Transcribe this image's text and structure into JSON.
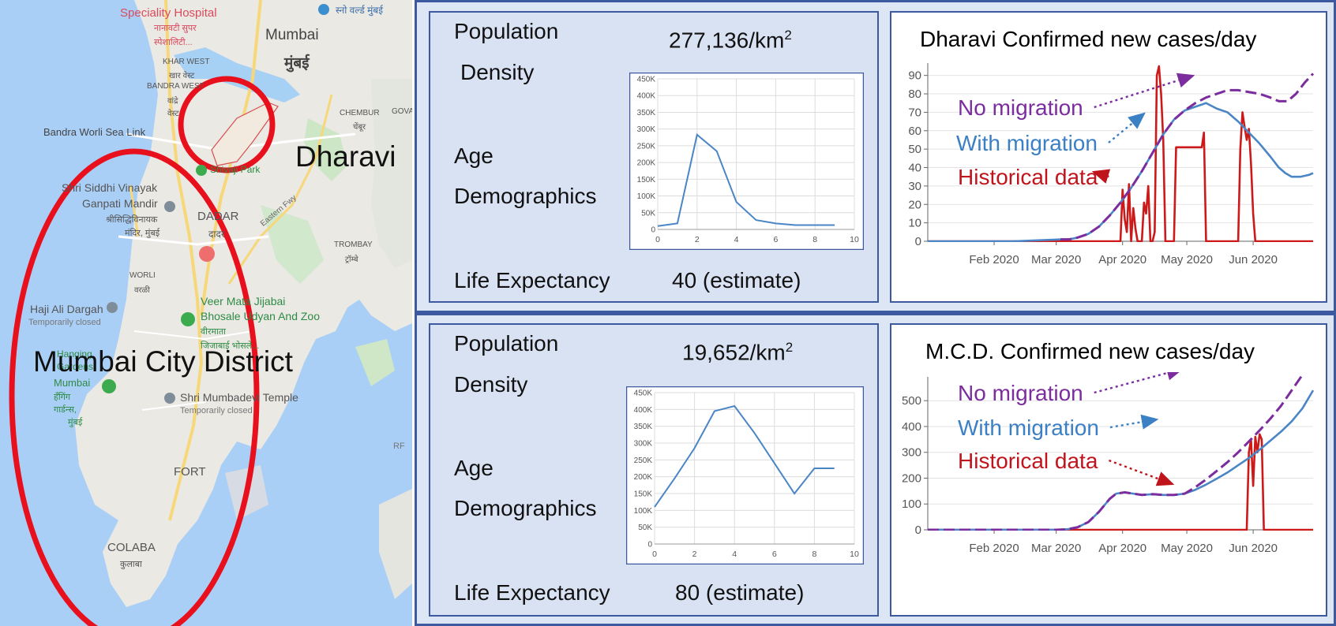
{
  "map": {
    "labels": {
      "speciality_hospital": "Speciality Hospital",
      "speciality_hospital_local1": "नानावटी सुपर",
      "speciality_hospital_local2": "स्पेशालिटी...",
      "top_local": "स्नो वर्ल्ड मुंबई",
      "mumbai": "Mumbai",
      "mumbai_local": "मुंबई",
      "khar_west": "KHAR WEST",
      "khar_west_local": "खार वेस्ट",
      "bandra_west": "BANDRA WEST",
      "bandra_west_local": "वांद्रे",
      "west_local": "वेस्ट",
      "bandra_worli": "Bandra Worli Sea Link",
      "chembur": "CHEMBUR",
      "chembur_local": "चेंबूर",
      "govan": "GOVAN",
      "dharavi": "Dharavi",
      "shivaji_park": "Shivaji Park",
      "siddhivinayak1": "Shri Siddhi Vinayak",
      "siddhivinayak2": "Ganpati Mandir",
      "siddhivinayak_local1": "श्रीसिद्धिविनायक",
      "siddhivinayak_local2": "मंदिर, मुंबई",
      "dadar": "DADAR",
      "dadar_local": "दादर",
      "eastern_fwy": "Eastern Fwy",
      "trombay": "TROMBAY",
      "trombay_local": "ट्रॉम्बे",
      "worli": "WORLI",
      "worli_local": "वरळी",
      "haji_ali": "Haji Ali Dargah",
      "temp_closed1": "Temporarily closed",
      "veer1": "Veer Mata Jijabai",
      "veer2": "Bhosale Udyan And Zoo",
      "veer_local1": "वीरमाता",
      "veer_local2": "जिजाबाई भोसले...",
      "mumbai_city_district": "Mumbai City District",
      "hanging1": "Hanging",
      "hanging2": "Gardens",
      "hanging3": "Mumbai",
      "hanging_local1": "हँगिंग",
      "hanging_local2": "गार्डन्स,",
      "hanging_local3": "मुंबई",
      "mumbadevi": "Shri Mumbadevi Temple",
      "temp_closed2": "Temporarily closed",
      "fort": "FORT",
      "colaba": "COLABA",
      "colaba_local": "कुलाबा",
      "rf": "RF"
    },
    "circle_color": "#e8101d"
  },
  "panels": [
    {
      "population_label_1": "Population",
      "population_label_2": "Density",
      "density_value": "277,136/km",
      "density_sup": "2",
      "age_label_1": "Age",
      "age_label_2": "Demographics",
      "life_label": "Life Expectancy",
      "life_value": "40 (estimate)",
      "age_chart": {
        "type": "line",
        "x": [
          0,
          1,
          2,
          3,
          4,
          5,
          6,
          7,
          8,
          9
        ],
        "values": [
          10000,
          18000,
          283000,
          234000,
          82000,
          28000,
          18000,
          13000,
          13000,
          13000
        ],
        "yticks": [
          "0",
          "50K",
          "100K",
          "150K",
          "200K",
          "250K",
          "300K",
          "350K",
          "400K",
          "450K"
        ],
        "xticks": [
          "0",
          "2",
          "4",
          "6",
          "8",
          "10"
        ],
        "xlim": [
          0,
          10
        ],
        "ylim": [
          0,
          450000
        ],
        "color": "#4a86c5"
      },
      "cases_chart": {
        "type": "line",
        "title": "Dharavi Confirmed new cases/day",
        "xticks": [
          "Feb 2020",
          "Mar 2020",
          "Apr 2020",
          "May 2020",
          "Jun 2020"
        ],
        "xtick_days": [
          31,
          60,
          91,
          121,
          152
        ],
        "xlim": [
          0,
          180
        ],
        "yticks": [
          "0",
          "10",
          "20",
          "30",
          "40",
          "50",
          "60",
          "70",
          "80",
          "90"
        ],
        "ylim": [
          0,
          95
        ],
        "series": [
          {
            "name": "No migration",
            "color": "#7b2d9e",
            "dash": "dashed",
            "points": [
              [
                62,
                1
              ],
              [
                66,
                1
              ],
              [
                70,
                2
              ],
              [
                75,
                4
              ],
              [
                80,
                8
              ],
              [
                85,
                14
              ],
              [
                90,
                21
              ],
              [
                95,
                29
              ],
              [
                100,
                38
              ],
              [
                105,
                48
              ],
              [
                110,
                58
              ],
              [
                115,
                66
              ],
              [
                120,
                71
              ],
              [
                125,
                75
              ],
              [
                130,
                78
              ],
              [
                135,
                80
              ],
              [
                140,
                82
              ],
              [
                145,
                82
              ],
              [
                150,
                81
              ],
              [
                155,
                80
              ],
              [
                160,
                78
              ],
              [
                164,
                76
              ],
              [
                168,
                76
              ],
              [
                172,
                80
              ],
              [
                176,
                86
              ],
              [
                180,
                91
              ]
            ]
          },
          {
            "name": "With migration",
            "color": "#4a86c5",
            "dash": "solid",
            "points": [
              [
                0,
                0
              ],
              [
                20,
                0
              ],
              [
                40,
                0
              ],
              [
                62,
                1
              ],
              [
                66,
                1
              ],
              [
                70,
                2
              ],
              [
                75,
                4
              ],
              [
                80,
                8
              ],
              [
                85,
                14
              ],
              [
                90,
                21
              ],
              [
                95,
                29
              ],
              [
                100,
                38
              ],
              [
                105,
                48
              ],
              [
                110,
                58
              ],
              [
                115,
                66
              ],
              [
                120,
                71
              ],
              [
                125,
                73
              ],
              [
                130,
                75
              ],
              [
                135,
                72
              ],
              [
                140,
                70
              ],
              [
                145,
                65
              ],
              [
                150,
                59
              ],
              [
                155,
                53
              ],
              [
                160,
                46
              ],
              [
                164,
                40
              ],
              [
                167,
                37
              ],
              [
                170,
                35
              ],
              [
                174,
                35
              ],
              [
                178,
                36
              ],
              [
                180,
                37
              ]
            ]
          },
          {
            "name": "Historical data",
            "color": "#cc1a1a",
            "dash": "solid",
            "points": [
              [
                0,
                0
              ],
              [
                87,
                0
              ],
              [
                90,
                0
              ],
              [
                91,
                28
              ],
              [
                92,
                12
              ],
              [
                93,
                5
              ],
              [
                94,
                31
              ],
              [
                95,
                0
              ],
              [
                96,
                18
              ],
              [
                97,
                7
              ],
              [
                98,
                0
              ],
              [
                99,
                0
              ],
              [
                100,
                0
              ],
              [
                101,
                21
              ],
              [
                102,
                15
              ],
              [
                103,
                30
              ],
              [
                104,
                0
              ],
              [
                105,
                0
              ],
              [
                106,
                5
              ],
              [
                107,
                90
              ],
              [
                108,
                95
              ],
              [
                109,
                80
              ],
              [
                110,
                55
              ],
              [
                111,
                0
              ],
              [
                115,
                0
              ],
              [
                116,
                51
              ],
              [
                128,
                51
              ],
              [
                129,
                59
              ],
              [
                130,
                0
              ],
              [
                145,
                0
              ],
              [
                146,
                50
              ],
              [
                147,
                70
              ],
              [
                148,
                62
              ],
              [
                149,
                55
              ],
              [
                150,
                61
              ],
              [
                151,
                42
              ],
              [
                152,
                15
              ],
              [
                153,
                0
              ],
              [
                180,
                0
              ]
            ]
          }
        ],
        "annotations": {
          "no_migration": "No migration",
          "with_migration": "With migration",
          "historical": "Historical data"
        }
      }
    },
    {
      "population_label_1": "Population",
      "population_label_2": "Density",
      "density_value": "19,652/km",
      "density_sup": "2",
      "age_label_1": "Age",
      "age_label_2": "Demographics",
      "life_label": "Life Expectancy",
      "life_value": "80 (estimate)",
      "age_chart": {
        "type": "line",
        "x": [
          0,
          1,
          2,
          3,
          4,
          5,
          6,
          7,
          8,
          9
        ],
        "values": [
          110000,
          195000,
          285000,
          395000,
          410000,
          330000,
          240000,
          150000,
          225000,
          225000
        ],
        "yticks": [
          "0",
          "50K",
          "100K",
          "150K",
          "200K",
          "250K",
          "300K",
          "350K",
          "400K",
          "450K"
        ],
        "xticks": [
          "0",
          "2",
          "4",
          "6",
          "8",
          "10"
        ],
        "xlim": [
          0,
          10
        ],
        "ylim": [
          0,
          450000
        ],
        "color": "#4a86c5"
      },
      "cases_chart": {
        "type": "line",
        "title": "M.C.D.  Confirmed new cases/day",
        "xticks": [
          "Feb 2020",
          "Mar 2020",
          "Apr 2020",
          "May 2020",
          "Jun 2020"
        ],
        "xtick_days": [
          31,
          60,
          91,
          121,
          152
        ],
        "xlim": [
          0,
          180
        ],
        "yticks": [
          "0",
          "100",
          "200",
          "300",
          "400",
          "500"
        ],
        "ylim": [
          0,
          580
        ],
        "series": [
          {
            "name": "No migration",
            "color": "#7b2d9e",
            "dash": "dashed",
            "points": [
              [
                0,
                0
              ],
              [
                20,
                0
              ],
              [
                40,
                0
              ],
              [
                52,
                0
              ],
              [
                60,
                0
              ],
              [
                65,
                2
              ],
              [
                70,
                10
              ],
              [
                75,
                30
              ],
              [
                80,
                70
              ],
              [
                85,
                120
              ],
              [
                88,
                140
              ],
              [
                92,
                145
              ],
              [
                96,
                140
              ],
              [
                100,
                135
              ],
              [
                105,
                138
              ],
              [
                110,
                135
              ],
              [
                115,
                135
              ],
              [
                120,
                140
              ],
              [
                125,
                165
              ],
              [
                130,
                195
              ],
              [
                135,
                228
              ],
              [
                140,
                262
              ],
              [
                145,
                300
              ],
              [
                150,
                342
              ],
              [
                155,
                385
              ],
              [
                160,
                430
              ],
              [
                165,
                480
              ],
              [
                170,
                540
              ],
              [
                175,
                600
              ]
            ]
          },
          {
            "name": "With migration",
            "color": "#4a86c5",
            "dash": "solid",
            "points": [
              [
                0,
                0
              ],
              [
                20,
                0
              ],
              [
                40,
                0
              ],
              [
                52,
                0
              ],
              [
                60,
                0
              ],
              [
                65,
                2
              ],
              [
                70,
                10
              ],
              [
                75,
                30
              ],
              [
                80,
                70
              ],
              [
                85,
                120
              ],
              [
                88,
                140
              ],
              [
                92,
                145
              ],
              [
                96,
                140
              ],
              [
                100,
                135
              ],
              [
                105,
                138
              ],
              [
                110,
                135
              ],
              [
                115,
                135
              ],
              [
                120,
                140
              ],
              [
                125,
                155
              ],
              [
                130,
                175
              ],
              [
                135,
                198
              ],
              [
                140,
                222
              ],
              [
                145,
                250
              ],
              [
                150,
                278
              ],
              [
                155,
                310
              ],
              [
                160,
                345
              ],
              [
                165,
                380
              ],
              [
                170,
                420
              ],
              [
                175,
                470
              ],
              [
                180,
                540
              ]
            ]
          },
          {
            "name": "Historical data",
            "color": "#cc1a1a",
            "dash": "solid",
            "points": [
              [
                0,
                0
              ],
              [
                148,
                0
              ],
              [
                149,
                0
              ],
              [
                150,
                300
              ],
              [
                151,
                350
              ],
              [
                152,
                170
              ],
              [
                153,
                360
              ],
              [
                154,
                300
              ],
              [
                155,
                370
              ],
              [
                156,
                350
              ],
              [
                157,
                0
              ],
              [
                180,
                0
              ]
            ]
          }
        ],
        "annotations": {
          "no_migration": "No migration",
          "with_migration": "With migration",
          "historical": "Historical data"
        }
      }
    }
  ]
}
